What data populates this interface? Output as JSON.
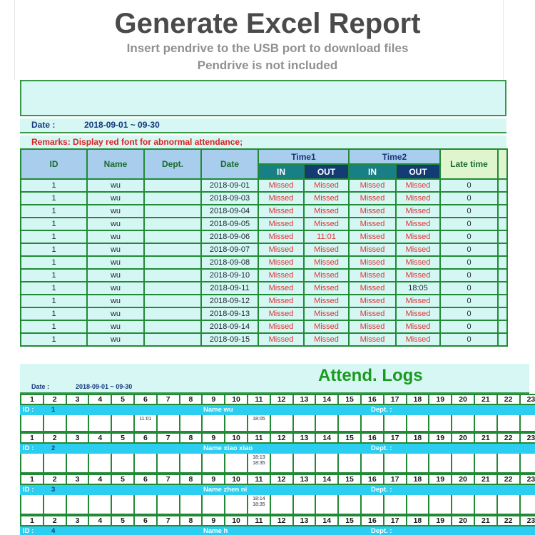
{
  "header": {
    "title": "Generate Excel Report",
    "subtitle1": "Insert pendrive to the USB port to download files",
    "subtitle2": "Pendrive is not included"
  },
  "report": {
    "date_label": "Date :",
    "date_value": "2018-09-01 ~ 09-30",
    "remarks": "Remarks: Display red font for abnormal attendance;",
    "table": {
      "col_id": "ID",
      "col_name": "Name",
      "col_dept": "Dept.",
      "col_date": "Date",
      "col_time1": "Time1",
      "col_time2": "Time2",
      "col_in": "IN",
      "col_out": "OUT",
      "col_late": "Late time",
      "rows": [
        {
          "id": "1",
          "name": "wu",
          "dept": "",
          "date": "2018-09-01",
          "times": [
            "Missed",
            "Missed",
            "Missed",
            "Missed"
          ],
          "times_red": [
            true,
            true,
            true,
            true
          ],
          "late": "0"
        },
        {
          "id": "1",
          "name": "wu",
          "dept": "",
          "date": "2018-09-03",
          "times": [
            "Missed",
            "Missed",
            "Missed",
            "Missed"
          ],
          "times_red": [
            true,
            true,
            true,
            true
          ],
          "late": "0"
        },
        {
          "id": "1",
          "name": "wu",
          "dept": "",
          "date": "2018-09-04",
          "times": [
            "Missed",
            "Missed",
            "Missed",
            "Missed"
          ],
          "times_red": [
            true,
            true,
            true,
            true
          ],
          "late": "0"
        },
        {
          "id": "1",
          "name": "wu",
          "dept": "",
          "date": "2018-09-05",
          "times": [
            "Missed",
            "Missed",
            "Missed",
            "Missed"
          ],
          "times_red": [
            true,
            true,
            true,
            true
          ],
          "late": "0"
        },
        {
          "id": "1",
          "name": "wu",
          "dept": "",
          "date": "2018-09-06",
          "times": [
            "Missed",
            "11:01",
            "Missed",
            "Missed"
          ],
          "times_red": [
            true,
            true,
            true,
            true
          ],
          "late": "0"
        },
        {
          "id": "1",
          "name": "wu",
          "dept": "",
          "date": "2018-09-07",
          "times": [
            "Missed",
            "Missed",
            "Missed",
            "Missed"
          ],
          "times_red": [
            true,
            true,
            true,
            true
          ],
          "late": "0"
        },
        {
          "id": "1",
          "name": "wu",
          "dept": "",
          "date": "2018-09-08",
          "times": [
            "Missed",
            "Missed",
            "Missed",
            "Missed"
          ],
          "times_red": [
            true,
            true,
            true,
            true
          ],
          "late": "0"
        },
        {
          "id": "1",
          "name": "wu",
          "dept": "",
          "date": "2018-09-10",
          "times": [
            "Missed",
            "Missed",
            "Missed",
            "Missed"
          ],
          "times_red": [
            true,
            true,
            true,
            true
          ],
          "late": "0"
        },
        {
          "id": "1",
          "name": "wu",
          "dept": "",
          "date": "2018-09-11",
          "times": [
            "Missed",
            "Missed",
            "Missed",
            "18:05"
          ],
          "times_red": [
            true,
            true,
            true,
            false
          ],
          "late": "0"
        },
        {
          "id": "1",
          "name": "wu",
          "dept": "",
          "date": "2018-09-12",
          "times": [
            "Missed",
            "Missed",
            "Missed",
            "Missed"
          ],
          "times_red": [
            true,
            true,
            true,
            true
          ],
          "late": "0"
        },
        {
          "id": "1",
          "name": "wu",
          "dept": "",
          "date": "2018-09-13",
          "times": [
            "Missed",
            "Missed",
            "Missed",
            "Missed"
          ],
          "times_red": [
            true,
            true,
            true,
            true
          ],
          "late": "0"
        },
        {
          "id": "1",
          "name": "wu",
          "dept": "",
          "date": "2018-09-14",
          "times": [
            "Missed",
            "Missed",
            "Missed",
            "Missed"
          ],
          "times_red": [
            true,
            true,
            true,
            true
          ],
          "late": "0"
        },
        {
          "id": "1",
          "name": "wu",
          "dept": "",
          "date": "2018-09-15",
          "times": [
            "Missed",
            "Missed",
            "Missed",
            "Missed"
          ],
          "times_red": [
            true,
            true,
            true,
            true
          ],
          "late": "0"
        }
      ]
    }
  },
  "logs": {
    "title": "Attend. Logs",
    "date_label": "Date :",
    "date_value": "2018-09-01 ~ 09-30",
    "id_label": "ID :",
    "dept_label": "Dept. :",
    "days": [
      "1",
      "2",
      "3",
      "4",
      "5",
      "6",
      "7",
      "8",
      "9",
      "10",
      "11",
      "12",
      "13",
      "14",
      "15",
      "16",
      "17",
      "18",
      "19",
      "20",
      "21",
      "22",
      "23"
    ],
    "groups": [
      {
        "id": "1",
        "name_text": "Name wu",
        "times": {
          "6": [
            "11:01"
          ],
          "11": [
            "18:05"
          ]
        }
      },
      {
        "id": "2",
        "name_text": "Name xiao xiao",
        "times": {
          "11": [
            "18:13",
            "18:35"
          ]
        }
      },
      {
        "id": "3",
        "name_text": "Name zhen ni",
        "times": {
          "11": [
            "18:14",
            "18:35"
          ]
        }
      },
      {
        "id": "4",
        "name_text": "Name h",
        "times": {}
      }
    ]
  },
  "colors": {
    "border_green": "#218a35",
    "band_cyan": "#d6f7f3",
    "header_blue": "#a9cdec",
    "in_teal": "#187f87",
    "out_navy": "#133c74",
    "late_green": "#def5cd",
    "abnormal_red": "#e03333",
    "id_bar_cyan": "#2bcdf0",
    "logs_title_green": "#1b9a20",
    "navy_text": "#14387c"
  }
}
